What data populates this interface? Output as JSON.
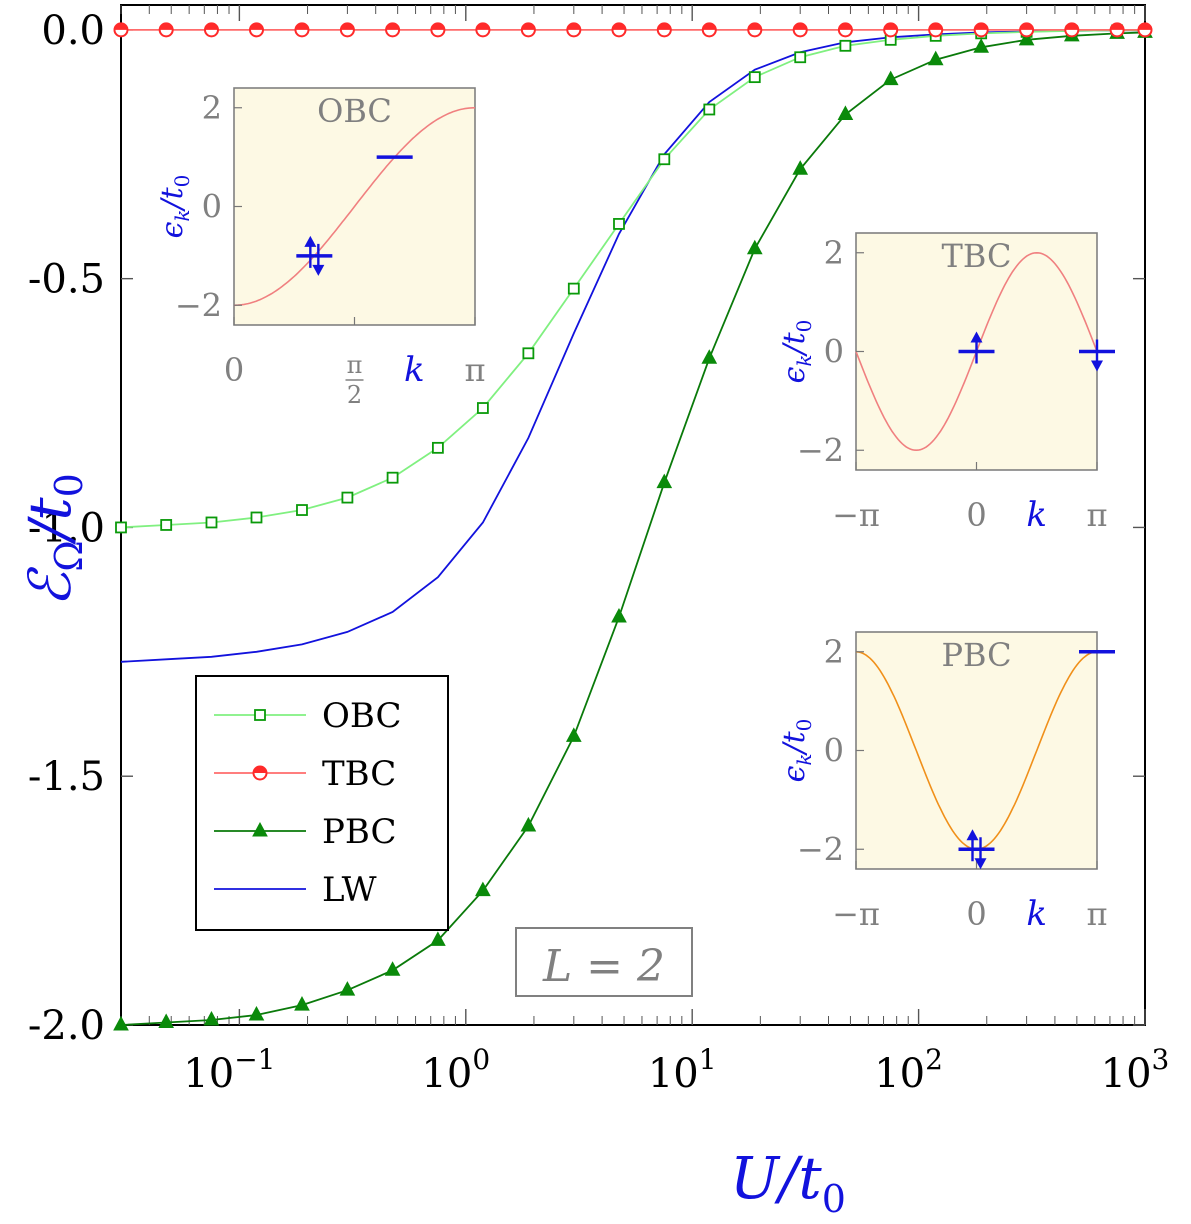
{
  "chart_data": {
    "type": "line",
    "xscale": "log",
    "xlim": [
      0.03,
      1000
    ],
    "ylim": [
      -2.0,
      0.05
    ],
    "xlabel": "U/t0",
    "xlabel_main": "U/t",
    "xlabel_sub": "0",
    "ylabel_main": "ℰ",
    "ylabel_sub": "Ω",
    "ylabel_rest": "/t",
    "ylabel_sub2": "0",
    "annotation": "L = 2",
    "legend_position": "lower-left",
    "grid": false,
    "xticks": [
      {
        "value": 0.1,
        "base": "10",
        "exp": "−1"
      },
      {
        "value": 1,
        "base": "10",
        "exp": "0"
      },
      {
        "value": 10,
        "base": "10",
        "exp": "1"
      },
      {
        "value": 100,
        "base": "10",
        "exp": "2"
      },
      {
        "value": 1000,
        "base": "10",
        "exp": "3"
      }
    ],
    "yticks": [
      {
        "value": 0.0,
        "label": "0.0"
      },
      {
        "value": -0.5,
        "label": "-0.5"
      },
      {
        "value": -1.0,
        "label": "-1.0"
      },
      {
        "value": -1.5,
        "label": "-1.5"
      },
      {
        "value": -2.0,
        "label": "-2.0"
      }
    ],
    "series": [
      {
        "name": "OBC",
        "color": "#80f080",
        "marker_color": "#0a9a0a",
        "marker": "open-square",
        "x": [
          0.03,
          0.0475,
          0.0753,
          0.119,
          0.189,
          0.3,
          0.475,
          0.753,
          1.19,
          1.89,
          3.0,
          4.75,
          7.53,
          11.9,
          18.9,
          30.0,
          47.5,
          75.3,
          119,
          189,
          300,
          475,
          753
        ],
        "y": [
          -1.0,
          -0.995,
          -0.99,
          -0.98,
          -0.965,
          -0.94,
          -0.9,
          -0.84,
          -0.76,
          -0.65,
          -0.52,
          -0.39,
          -0.26,
          -0.16,
          -0.095,
          -0.055,
          -0.032,
          -0.02,
          -0.012,
          -0.007,
          -0.004,
          -0.002,
          -0.001
        ]
      },
      {
        "name": "TBC",
        "color": "#ff6b6b",
        "marker_color": "#ff2a2a",
        "marker": "half-circle",
        "x": [
          0.03,
          0.0475,
          0.0753,
          0.119,
          0.189,
          0.3,
          0.475,
          0.753,
          1.19,
          1.89,
          3.0,
          4.75,
          7.53,
          11.9,
          18.9,
          30.0,
          47.5,
          75.3,
          119,
          189,
          300,
          475,
          753,
          1000
        ],
        "y": [
          0,
          0,
          0,
          0,
          0,
          0,
          0,
          0,
          0,
          0,
          0,
          0,
          0,
          0,
          0,
          0,
          0,
          0,
          0,
          0,
          0,
          0,
          0,
          0
        ]
      },
      {
        "name": "PBC",
        "color": "#0a7a0a",
        "marker_color": "#0a8a0a",
        "marker": "triangle",
        "x": [
          0.03,
          0.0475,
          0.0753,
          0.119,
          0.189,
          0.3,
          0.475,
          0.753,
          1.19,
          1.89,
          3.0,
          4.75,
          7.53,
          11.9,
          18.9,
          30.0,
          47.5,
          75.3,
          119,
          189,
          300,
          475,
          753,
          1000
        ],
        "y": [
          -2.0,
          -1.995,
          -1.99,
          -1.98,
          -1.96,
          -1.93,
          -1.89,
          -1.83,
          -1.73,
          -1.6,
          -1.42,
          -1.18,
          -0.91,
          -0.66,
          -0.44,
          -0.28,
          -0.17,
          -0.1,
          -0.06,
          -0.035,
          -0.02,
          -0.012,
          -0.007,
          -0.005
        ]
      },
      {
        "name": "LW",
        "color": "#1212dd",
        "marker": "none",
        "x": [
          0.03,
          0.0475,
          0.0753,
          0.119,
          0.189,
          0.3,
          0.475,
          0.753,
          1.19,
          1.89,
          3.0,
          4.75,
          7.53,
          11.9,
          18.9,
          30.0,
          47.5,
          75.3,
          119,
          189,
          300,
          475,
          753,
          1000
        ],
        "y": [
          -1.27,
          -1.265,
          -1.26,
          -1.25,
          -1.235,
          -1.21,
          -1.17,
          -1.1,
          -0.99,
          -0.82,
          -0.61,
          -0.41,
          -0.25,
          -0.145,
          -0.08,
          -0.045,
          -0.025,
          -0.015,
          -0.009,
          -0.005,
          -0.003,
          -0.002,
          -0.001,
          -0.001
        ]
      }
    ],
    "insets": [
      {
        "label": "OBC",
        "ylabel": "ϵk/t0",
        "xlabel": "k",
        "xticks": [
          {
            "value": 0,
            "label": "0"
          },
          {
            "value": 1.5708,
            "label": "π/2"
          },
          {
            "value": 3.14159,
            "label": "π"
          }
        ],
        "yticks": [
          {
            "value": -2,
            "label": "−2"
          },
          {
            "value": 0,
            "label": "0"
          },
          {
            "value": 2,
            "label": "2"
          }
        ],
        "xlim": [
          0,
          3.14159
        ],
        "ylim": [
          -2.4,
          2.4
        ],
        "curve": "-2cos(k)",
        "color": "#f08080",
        "levels": [
          {
            "k": 1.0472,
            "e": -1.0,
            "spins": "up-down"
          },
          {
            "k": 2.0944,
            "e": 1.0,
            "spins": "empty"
          }
        ]
      },
      {
        "label": "TBC",
        "ylabel": "ϵk/t0",
        "xlabel": "k",
        "xticks": [
          {
            "value": -3.14159,
            "label": "−π"
          },
          {
            "value": 0,
            "label": "0"
          },
          {
            "value": 3.14159,
            "label": "π"
          }
        ],
        "yticks": [
          {
            "value": -2,
            "label": "−2"
          },
          {
            "value": 0,
            "label": "0"
          },
          {
            "value": 2,
            "label": "2"
          }
        ],
        "xlim": [
          -3.14159,
          3.14159
        ],
        "ylim": [
          -2.4,
          2.4
        ],
        "curve": "2sin(k)",
        "color": "#f08080",
        "levels": [
          {
            "k": 0,
            "e": 0,
            "spins": "up"
          },
          {
            "k": 3.14159,
            "e": 0,
            "spins": "down"
          }
        ]
      },
      {
        "label": "PBC",
        "ylabel": "ϵk/t0",
        "xlabel": "k",
        "xticks": [
          {
            "value": -3.14159,
            "label": "−π"
          },
          {
            "value": 0,
            "label": "0"
          },
          {
            "value": 3.14159,
            "label": "π"
          }
        ],
        "yticks": [
          {
            "value": -2,
            "label": "−2"
          },
          {
            "value": 0,
            "label": "0"
          },
          {
            "value": 2,
            "label": "2"
          }
        ],
        "xlim": [
          -3.14159,
          3.14159
        ],
        "ylim": [
          -2.4,
          2.4
        ],
        "curve": "-2cos(k)",
        "color": "#f0901a",
        "levels": [
          {
            "k": 0,
            "e": -2,
            "spins": "up-down"
          },
          {
            "k": 3.14159,
            "e": 2,
            "spins": "empty"
          }
        ]
      }
    ]
  }
}
